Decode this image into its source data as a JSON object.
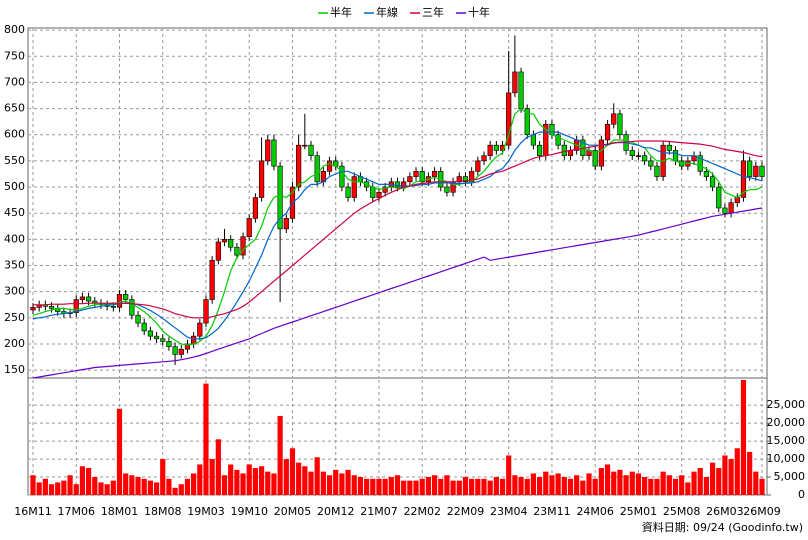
{
  "chart_data": [
    {
      "type": "candlestick",
      "legend": "top",
      "grid": true,
      "up_color": "#ff0000",
      "down_color": "#00cc00",
      "source": "資料日期: 09/24 (Goodinfo.tw)",
      "ylim": [
        135,
        804
      ],
      "yticks": [
        150,
        200,
        250,
        300,
        350,
        400,
        450,
        500,
        550,
        600,
        650,
        700,
        750,
        800
      ],
      "categories": [
        "16M11",
        null,
        null,
        null,
        null,
        null,
        null,
        "17M06",
        null,
        null,
        null,
        null,
        null,
        null,
        "18M01",
        null,
        null,
        null,
        null,
        null,
        null,
        "18M08",
        null,
        null,
        null,
        null,
        null,
        null,
        "19M03",
        null,
        null,
        null,
        null,
        null,
        null,
        "19M10",
        null,
        null,
        null,
        null,
        null,
        null,
        "20M05",
        null,
        null,
        null,
        null,
        null,
        null,
        "20M12",
        null,
        null,
        null,
        null,
        null,
        null,
        "21M07",
        null,
        null,
        null,
        null,
        null,
        null,
        "22M02",
        null,
        null,
        null,
        null,
        null,
        null,
        "22M09",
        null,
        null,
        null,
        null,
        null,
        null,
        "23M04",
        null,
        null,
        null,
        null,
        null,
        null,
        "23M11",
        null,
        null,
        null,
        null,
        null,
        null,
        "24M06",
        null,
        null,
        null,
        null,
        null,
        null,
        "25M01",
        null,
        null,
        null,
        null,
        null,
        null,
        "25M08",
        null,
        null,
        null,
        null,
        null,
        null,
        "26M03",
        null,
        null,
        null,
        null,
        null,
        "26M09"
      ],
      "open": [
        265,
        270,
        275,
        272,
        268,
        262,
        258,
        260,
        285,
        290,
        282,
        278,
        275,
        272,
        270,
        295,
        285,
        255,
        240,
        225,
        215,
        210,
        205,
        195,
        180,
        190,
        200,
        215,
        240,
        285,
        360,
        395,
        400,
        385,
        370,
        405,
        440,
        480,
        550,
        590,
        540,
        420,
        440,
        500,
        580,
        580,
        560,
        510,
        530,
        550,
        540,
        500,
        480,
        520,
        510,
        500,
        480,
        490,
        500,
        510,
        500,
        510,
        520,
        530,
        510,
        520,
        530,
        500,
        490,
        510,
        520,
        510,
        530,
        550,
        560,
        580,
        570,
        580,
        680,
        720,
        650,
        600,
        580,
        560,
        620,
        600,
        580,
        560,
        570,
        590,
        560,
        570,
        540,
        590,
        620,
        640,
        600,
        570,
        560,
        560,
        550,
        540,
        520,
        580,
        570,
        550,
        540,
        550,
        560,
        530,
        520,
        500,
        460,
        450,
        470,
        480,
        550,
        520,
        540
      ],
      "high": [
        278,
        283,
        283,
        280,
        276,
        270,
        268,
        293,
        298,
        298,
        290,
        286,
        283,
        280,
        303,
        303,
        293,
        263,
        248,
        233,
        223,
        218,
        213,
        203,
        198,
        208,
        223,
        248,
        293,
        368,
        403,
        420,
        408,
        393,
        413,
        448,
        488,
        595,
        600,
        600,
        548,
        448,
        510,
        600,
        640,
        588,
        568,
        538,
        558,
        558,
        548,
        508,
        528,
        528,
        518,
        508,
        498,
        508,
        518,
        518,
        518,
        528,
        538,
        538,
        528,
        538,
        538,
        508,
        518,
        528,
        528,
        538,
        558,
        568,
        588,
        588,
        588,
        760,
        790,
        728,
        658,
        608,
        588,
        628,
        628,
        608,
        588,
        578,
        598,
        598,
        578,
        578,
        598,
        628,
        660,
        648,
        608,
        578,
        568,
        568,
        558,
        548,
        588,
        588,
        578,
        558,
        558,
        568,
        568,
        538,
        528,
        508,
        468,
        478,
        488,
        570,
        558,
        548,
        548
      ],
      "low": [
        257,
        262,
        264,
        260,
        254,
        250,
        250,
        252,
        277,
        274,
        270,
        267,
        264,
        262,
        262,
        277,
        247,
        232,
        217,
        207,
        202,
        197,
        187,
        160,
        172,
        182,
        192,
        207,
        232,
        277,
        352,
        387,
        377,
        362,
        362,
        397,
        432,
        472,
        542,
        532,
        280,
        412,
        432,
        492,
        572,
        552,
        502,
        502,
        522,
        532,
        492,
        472,
        472,
        502,
        492,
        472,
        472,
        482,
        492,
        492,
        492,
        502,
        512,
        502,
        502,
        512,
        492,
        482,
        482,
        502,
        502,
        502,
        522,
        542,
        552,
        562,
        562,
        572,
        672,
        642,
        592,
        572,
        552,
        552,
        592,
        572,
        552,
        552,
        562,
        552,
        552,
        532,
        532,
        582,
        612,
        592,
        562,
        552,
        552,
        542,
        532,
        512,
        512,
        562,
        542,
        532,
        532,
        542,
        522,
        512,
        492,
        452,
        442,
        442,
        462,
        472,
        512,
        512,
        512
      ],
      "close": [
        270,
        275,
        272,
        268,
        262,
        258,
        260,
        285,
        290,
        282,
        278,
        275,
        272,
        270,
        295,
        285,
        255,
        240,
        225,
        215,
        210,
        205,
        195,
        180,
        190,
        200,
        215,
        240,
        285,
        360,
        395,
        400,
        385,
        370,
        405,
        440,
        480,
        550,
        590,
        540,
        420,
        440,
        500,
        580,
        580,
        560,
        510,
        530,
        550,
        540,
        500,
        480,
        520,
        510,
        500,
        480,
        490,
        500,
        510,
        500,
        510,
        520,
        530,
        510,
        520,
        530,
        500,
        490,
        510,
        520,
        510,
        530,
        550,
        560,
        580,
        570,
        580,
        680,
        720,
        650,
        600,
        580,
        560,
        620,
        600,
        580,
        560,
        570,
        590,
        560,
        570,
        540,
        590,
        620,
        640,
        600,
        570,
        560,
        560,
        550,
        540,
        520,
        580,
        570,
        550,
        540,
        550,
        560,
        530,
        520,
        500,
        460,
        450,
        470,
        480,
        550,
        520,
        540,
        520
      ],
      "series": [
        {
          "name": "半年",
          "color": "#00cc00",
          "values": [
            255,
            258,
            262,
            265,
            268,
            268,
            266,
            265,
            268,
            272,
            275,
            276,
            277,
            276,
            280,
            282,
            276,
            270,
            262,
            252,
            240,
            225,
            215,
            207,
            200,
            198,
            200,
            205,
            215,
            235,
            265,
            300,
            340,
            365,
            380,
            390,
            400,
            425,
            460,
            480,
            485,
            480,
            490,
            505,
            510,
            520,
            525,
            540,
            545,
            540,
            530,
            515,
            510,
            510,
            505,
            500,
            495,
            498,
            500,
            498,
            497,
            502,
            510,
            512,
            515,
            518,
            515,
            510,
            505,
            505,
            508,
            510,
            520,
            530,
            545,
            558,
            565,
            600,
            640,
            650,
            640,
            640,
            620,
            610,
            600,
            595,
            590,
            585,
            580,
            575,
            570,
            565,
            570,
            580,
            590,
            590,
            590,
            585,
            580,
            575,
            560,
            550,
            550,
            555,
            550,
            545,
            545,
            545,
            540,
            535,
            525,
            510,
            490,
            485,
            480,
            490,
            495,
            495,
            500
          ]
        },
        {
          "name": "年線",
          "color": "#0066cc",
          "values": [
            248,
            250,
            252,
            255,
            257,
            258,
            260,
            262,
            265,
            268,
            270,
            272,
            274,
            275,
            277,
            278,
            277,
            275,
            270,
            264,
            257,
            249,
            240,
            231,
            222,
            213,
            210,
            210,
            212,
            220,
            230,
            245,
            262,
            280,
            300,
            320,
            345,
            370,
            400,
            425,
            440,
            450,
            470,
            480,
            495,
            505,
            505,
            510,
            520,
            525,
            530,
            530,
            525,
            520,
            515,
            510,
            505,
            505,
            505,
            503,
            502,
            502,
            503,
            505,
            505,
            508,
            508,
            508,
            507,
            507,
            507,
            508,
            510,
            515,
            520,
            530,
            535,
            550,
            570,
            585,
            595,
            600,
            605,
            605,
            605,
            605,
            600,
            595,
            590,
            585,
            580,
            580,
            580,
            580,
            585,
            585,
            585,
            582,
            580,
            575,
            575,
            570,
            565,
            565,
            565,
            560,
            560,
            560,
            555,
            550,
            545,
            540,
            535,
            530,
            525,
            520,
            518,
            515,
            512
          ]
        },
        {
          "name": "三年",
          "color": "#cc0044",
          "values": [
            275,
            275,
            275,
            276,
            276,
            276,
            277,
            277,
            277,
            278,
            278,
            278,
            278,
            278,
            278,
            278,
            277,
            276,
            275,
            273,
            270,
            267,
            263,
            258,
            255,
            252,
            250,
            250,
            250,
            252,
            255,
            258,
            262,
            266,
            272,
            280,
            290,
            300,
            310,
            320,
            330,
            340,
            350,
            360,
            370,
            380,
            390,
            400,
            410,
            420,
            430,
            440,
            450,
            458,
            465,
            472,
            478,
            484,
            490,
            495,
            500,
            502,
            505,
            507,
            508,
            510,
            510,
            510,
            510,
            511,
            512,
            513,
            515,
            520,
            525,
            528,
            530,
            535,
            540,
            545,
            550,
            555,
            558,
            560,
            562,
            565,
            568,
            570,
            572,
            574,
            576,
            578,
            580,
            582,
            584,
            586,
            586,
            587,
            588,
            588,
            588,
            588,
            588,
            587,
            586,
            585,
            584,
            583,
            582,
            580,
            578,
            575,
            572,
            570,
            568,
            566,
            563,
            560,
            558
          ]
        },
        {
          "name": "十年",
          "color": "#6600cc",
          "values": [
            135,
            137,
            139,
            141,
            143,
            145,
            147,
            149,
            151,
            153,
            155,
            156,
            157,
            158,
            159,
            160,
            161,
            162,
            163,
            164,
            165,
            166,
            167,
            168,
            170,
            172,
            175,
            178,
            182,
            186,
            190,
            194,
            198,
            202,
            206,
            210,
            215,
            220,
            225,
            230,
            234,
            238,
            242,
            246,
            250,
            254,
            258,
            262,
            266,
            270,
            274,
            278,
            282,
            286,
            290,
            294,
            298,
            302,
            306,
            310,
            314,
            318,
            322,
            326,
            330,
            334,
            338,
            342,
            346,
            350,
            354,
            358,
            362,
            366,
            360,
            362,
            364,
            366,
            368,
            370,
            372,
            374,
            376,
            378,
            380,
            382,
            384,
            386,
            388,
            390,
            392,
            394,
            396,
            398,
            400,
            402,
            404,
            406,
            408,
            411,
            414,
            417,
            420,
            423,
            426,
            429,
            432,
            435,
            438,
            441,
            444,
            446,
            448,
            450,
            452,
            454,
            456,
            458,
            460
          ]
        }
      ]
    },
    {
      "type": "bar",
      "color": "#ff0000",
      "ylim": [
        0,
        32000
      ],
      "yticks": [
        0,
        {
          "value": 5000,
          "label": "5,000"
        },
        {
          "value": 10000,
          "label": "10,000"
        },
        {
          "value": 15000,
          "label": "15,000"
        },
        {
          "value": 20000,
          "label": "20,000"
        },
        {
          "value": 25000,
          "label": "25,000"
        }
      ],
      "values": [
        5500,
        3500,
        4500,
        3000,
        3500,
        4000,
        5500,
        3000,
        8000,
        7500,
        5000,
        3500,
        3000,
        4000,
        24000,
        6000,
        5500,
        5000,
        4500,
        4000,
        3500,
        10000,
        4500,
        2000,
        3000,
        4500,
        6000,
        8500,
        31000,
        10000,
        15500,
        5500,
        8500,
        7000,
        6000,
        8500,
        7500,
        8000,
        6500,
        6000,
        22000,
        10000,
        13000,
        9000,
        8000,
        6500,
        10500,
        6500,
        5500,
        7000,
        6000,
        7000,
        5500,
        5000,
        4500,
        4500,
        4500,
        4500,
        5000,
        5500,
        4000,
        4000,
        4000,
        4500,
        5000,
        5500,
        4500,
        5500,
        4000,
        4000,
        5000,
        4500,
        4500,
        4500,
        4000,
        5000,
        4500,
        11000,
        5500,
        5000,
        4500,
        6000,
        5000,
        6500,
        5500,
        6000,
        5000,
        4500,
        5500,
        4000,
        6000,
        4500,
        7500,
        8500,
        6500,
        7000,
        5500,
        6500,
        6000,
        5000,
        4500,
        4500,
        6500,
        5500,
        4500,
        5500,
        3500,
        6500,
        7500,
        5000,
        9000,
        7500,
        11000,
        10000,
        13000,
        32000,
        12000,
        6500,
        4500
      ]
    }
  ]
}
